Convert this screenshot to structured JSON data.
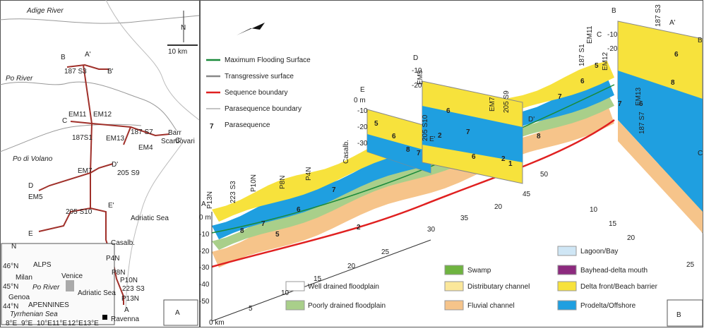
{
  "panel_a": {
    "label": "A",
    "north": "N",
    "scale": "10 km",
    "rivers": [
      "Adige River",
      "Po River",
      "Po di Volano"
    ],
    "sea": "Adriatic Sea",
    "city": "Ravenna",
    "section_ends": [
      "B",
      "A'",
      "B'",
      "C",
      "C'",
      "D",
      "D'",
      "E",
      "E'",
      "A"
    ],
    "wells": [
      "187 S3",
      "EM11",
      "EM12",
      "187S1",
      "187 S7",
      "EM13",
      "EM4",
      "Barr",
      "Scardovari",
      "EM7",
      "205 S9",
      "EM5",
      "205 S10",
      "Casalb.",
      "P4N",
      "P8N",
      "P10N",
      "223 S3",
      "P13N"
    ],
    "inset": {
      "north": "N",
      "places": [
        "ALPS",
        "Milan",
        "Po River",
        "Venice",
        "Adriatic Sea",
        "Genoa",
        "APENNINES",
        "Tyrrhenian Sea"
      ],
      "lat": [
        "46°N",
        "45°N",
        "44°N"
      ],
      "lon": [
        "8°E",
        "9°E",
        "10°E",
        "11°E",
        "12°E",
        "13°E"
      ]
    }
  },
  "panel_b": {
    "label": "B",
    "legend_lines": [
      "Maximum Flooding Surface",
      "Transgressive surface",
      "Sequence boundary",
      "Parasequence boundary"
    ],
    "parasequence_symbol": "7",
    "parasequence_text": "Parasequence",
    "legend_units": [
      "Well drained floodplain",
      "Poorly drained floodplain",
      "Swamp",
      "Distributary channel",
      "Fluvial channel",
      "Lagoon/Bay",
      "Bayhead-delta mouth",
      "Delta front/Beach barrier",
      "Prodelta/Offshore"
    ],
    "depth_ticks": [
      "0 m",
      "-10",
      "-20",
      "-30",
      "-40",
      "-50"
    ],
    "distance_ticks": [
      "0 km",
      "5",
      "10",
      "15",
      "20",
      "25",
      "30",
      "35",
      "20",
      "45",
      "50",
      "10",
      "15",
      "20",
      "25"
    ],
    "side_depths": [
      "0 m",
      "-10",
      "-20",
      "-30",
      "-10",
      "-20",
      "-10",
      "-20"
    ],
    "section_letters": [
      "A",
      "E",
      "E'",
      "D",
      "D'",
      "C",
      "B",
      "A'",
      "B",
      "C"
    ],
    "wells": [
      "P13N",
      "223 S3",
      "P10N",
      "P8N",
      "P4N",
      "Casalb.",
      "205 S10",
      "EM5",
      "EM7",
      "205 S9",
      "187 S1",
      "EM11",
      "EM12",
      "EM13",
      "187 S7",
      "187 S3"
    ],
    "parasequences": [
      "8",
      "7",
      "5",
      "6",
      "7",
      "2",
      "5",
      "6",
      "8",
      "7",
      "6",
      "2",
      "7",
      "6",
      "2",
      "1",
      "8",
      "7",
      "6",
      "5",
      "7",
      "6",
      "8",
      "6"
    ]
  }
}
